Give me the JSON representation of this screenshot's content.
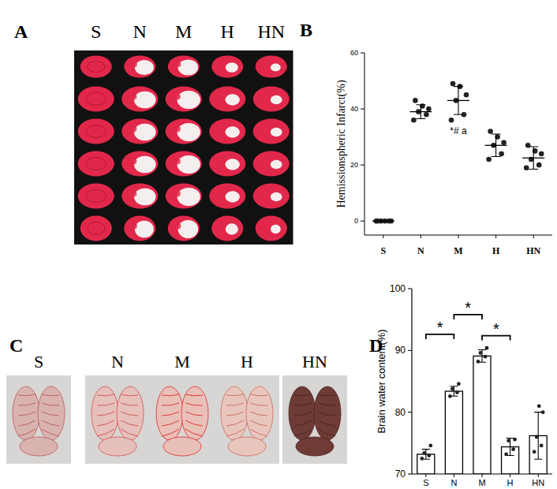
{
  "panels": [
    {
      "letter": "A",
      "groups": [
        "S",
        "N",
        "M",
        "H",
        "HN"
      ]
    },
    {
      "letter": "B"
    },
    {
      "letter": "C",
      "groups": [
        "S",
        "N",
        "M",
        "H",
        "HN"
      ]
    },
    {
      "letter": "D"
    }
  ],
  "chart_data": [
    {
      "type": "scatter",
      "categories": [
        "S",
        "N",
        "M",
        "H",
        "HN"
      ],
      "y_label": "Hemissionspheric Infarct(%)",
      "points": [
        [
          0,
          0,
          0,
          0,
          0,
          0
        ],
        [
          36,
          38,
          39,
          40,
          41,
          43
        ],
        [
          36,
          38,
          43,
          45,
          48,
          49
        ],
        [
          22,
          24,
          27,
          28,
          30,
          32
        ],
        [
          19,
          20,
          22,
          24,
          25,
          27
        ]
      ],
      "values": [
        0,
        39,
        43,
        27,
        22.5
      ],
      "errors": [
        0,
        2.5,
        5,
        4,
        4
      ],
      "ylim": [
        -5,
        60
      ],
      "yticks": [
        0,
        20,
        40,
        60
      ],
      "annotations": [
        {
          "text": "*# a",
          "category": 2,
          "y": 31
        }
      ]
    },
    {
      "type": "bar",
      "categories": [
        "S",
        "N",
        "M",
        "H",
        "HN"
      ],
      "y_label": "Brain water content(%)",
      "values": [
        73.2,
        83.4,
        89.1,
        74.4,
        76.2
      ],
      "errors": [
        0.8,
        0.8,
        1.0,
        1.4,
        3.8
      ],
      "points": [
        [
          72.5,
          73,
          73.4,
          74.6
        ],
        [
          82.6,
          83.2,
          83.8,
          84.6
        ],
        [
          88.2,
          89,
          89.6,
          90.4
        ],
        [
          73.2,
          74,
          75.4,
          75.6
        ],
        [
          73.6,
          74.6,
          76,
          80,
          81
        ]
      ],
      "color": "#ffffff",
      "ylim": [
        70,
        100
      ],
      "yticks": [
        70,
        80,
        90,
        100
      ],
      "significance": [
        {
          "text": "*",
          "from": 0,
          "to": 1,
          "y": 92.6
        },
        {
          "text": "*",
          "from": 1,
          "to": 2,
          "y": 95.8
        },
        {
          "text": "*",
          "from": 2,
          "to": 3,
          "y": 92.4
        }
      ]
    }
  ]
}
